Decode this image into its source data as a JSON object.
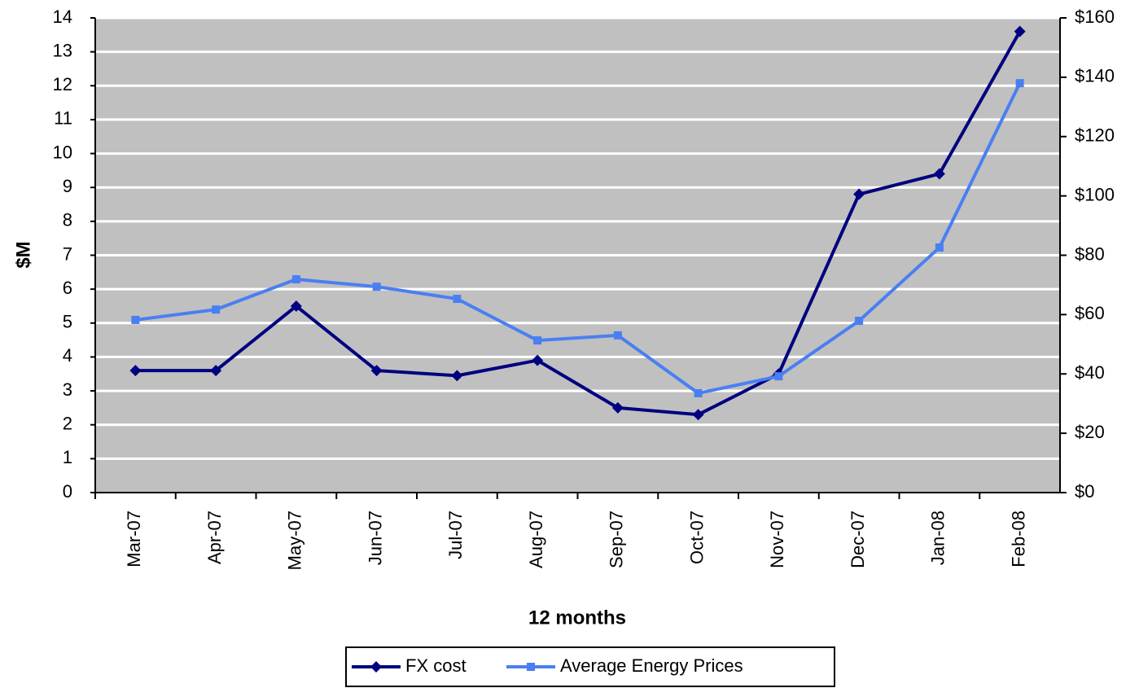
{
  "chart_data": {
    "type": "line",
    "categories": [
      "Mar-07",
      "Apr-07",
      "May-07",
      "Jun-07",
      "Jul-07",
      "Aug-07",
      "Sep-07",
      "Oct-07",
      "Nov-07",
      "Dec-07",
      "Jan-08",
      "Feb-08"
    ],
    "series": [
      {
        "name": "FX cost",
        "color": "#000080",
        "values": [
          3.6,
          3.6,
          5.5,
          3.6,
          3.45,
          3.9,
          2.5,
          2.3,
          3.5,
          8.8,
          9.4,
          13.6
        ]
      },
      {
        "name": "Average Energy Prices",
        "color": "#4a7ff2",
        "axis": "y2",
        "values": [
          58.2,
          61.7,
          71.9,
          69.4,
          65.3,
          51.3,
          53,
          33.5,
          39.2,
          57.9,
          82.6,
          138
        ]
      }
    ],
    "y_label": "$M",
    "x_label": "12 months",
    "ylim": [
      0,
      14
    ],
    "yticks": [
      0,
      1,
      2,
      3,
      4,
      5,
      6,
      7,
      8,
      9,
      10,
      11,
      12,
      13,
      14
    ],
    "y2lim": [
      0,
      160
    ],
    "y2ticks": [
      {
        "value": 0,
        "label": "$0"
      },
      {
        "value": 20,
        "label": "$20"
      },
      {
        "value": 40,
        "label": "$40"
      },
      {
        "value": 60,
        "label": "$60"
      },
      {
        "value": 80,
        "label": "$80"
      },
      {
        "value": 100,
        "label": "$100"
      },
      {
        "value": 120,
        "label": "$120"
      },
      {
        "value": 140,
        "label": "$140"
      },
      {
        "value": 160,
        "label": "$160"
      }
    ],
    "grid": true,
    "legend": "bottom"
  }
}
